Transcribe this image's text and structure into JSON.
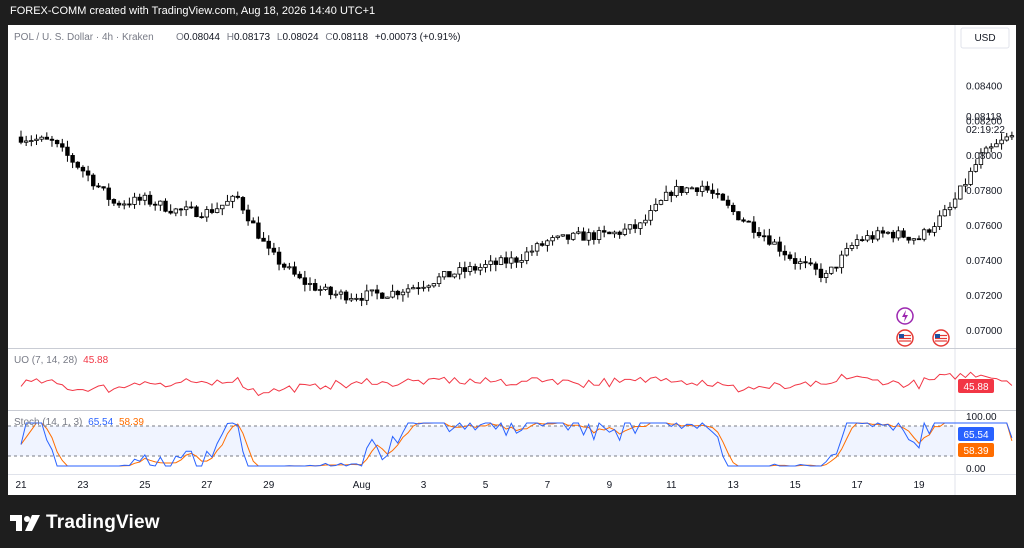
{
  "header": {
    "attribution": "FOREX-COMM created with TradingView.com, Aug 18, 2026 14:40 UTC+1"
  },
  "footer": {
    "brand": "TradingView"
  },
  "chart_data": [
    {
      "type": "candlestick",
      "symbol_line": "POL / U. S. Dollar · 4h · Kraken",
      "ohlc": {
        "o_label": "O",
        "o": "0.08044",
        "h_label": "H",
        "h": "0.08173",
        "l_label": "L",
        "l": "0.08024",
        "c_label": "C",
        "c": "0.08118",
        "change": "+0.00073 (+0.91%)"
      },
      "currency": "USD",
      "last_price": "0.08118",
      "countdown": "02:19:22",
      "ylim": [
        0.0693,
        0.0858
      ],
      "y_ticks": [
        "0.08400",
        "0.08200",
        "0.08000",
        "0.07800",
        "0.07600",
        "0.07400",
        "0.07200",
        "0.07000"
      ],
      "x_ticks": [
        "21",
        "23",
        "25",
        "27",
        "29",
        "Aug",
        "3",
        "5",
        "7",
        "9",
        "11",
        "13",
        "15",
        "17",
        "19"
      ],
      "x_tick_dates": [
        "2026-07-21",
        "2026-07-23",
        "2026-07-25",
        "2026-07-27",
        "2026-07-29",
        "2026-08-01",
        "2026-08-03",
        "2026-08-05",
        "2026-08-07",
        "2026-08-09",
        "2026-08-11",
        "2026-08-13",
        "2026-08-15",
        "2026-08-17",
        "2026-08-19"
      ],
      "closes_daily": [
        0.0811,
        0.0808,
        0.0792,
        0.0773,
        0.0775,
        0.0769,
        0.0768,
        0.0776,
        0.0745,
        0.0729,
        0.0721,
        0.072,
        0.0722,
        0.0727,
        0.0733,
        0.0737,
        0.0741,
        0.0751,
        0.0754,
        0.0755,
        0.076,
        0.078,
        0.0783,
        0.0768,
        0.0755,
        0.074,
        0.0731,
        0.0752,
        0.0756,
        0.0753,
        0.077,
        0.08,
        0.0812
      ],
      "event_icons": [
        "lightning-icon",
        "us-flag-icon",
        "us-flag-icon"
      ]
    },
    {
      "type": "line",
      "name": "UO (7, 14, 28)",
      "last_value": "45.88",
      "color": "#f23645"
    },
    {
      "type": "line",
      "name": "Stoch (14, 1, 3)",
      "k_value": "65.54",
      "d_value": "58.39",
      "k_color": "#2962ff",
      "d_color": "#ff6d00",
      "ylim": [
        0,
        100
      ],
      "band": [
        20,
        80
      ],
      "y_ticks": [
        "100.00",
        "0.00"
      ]
    }
  ]
}
